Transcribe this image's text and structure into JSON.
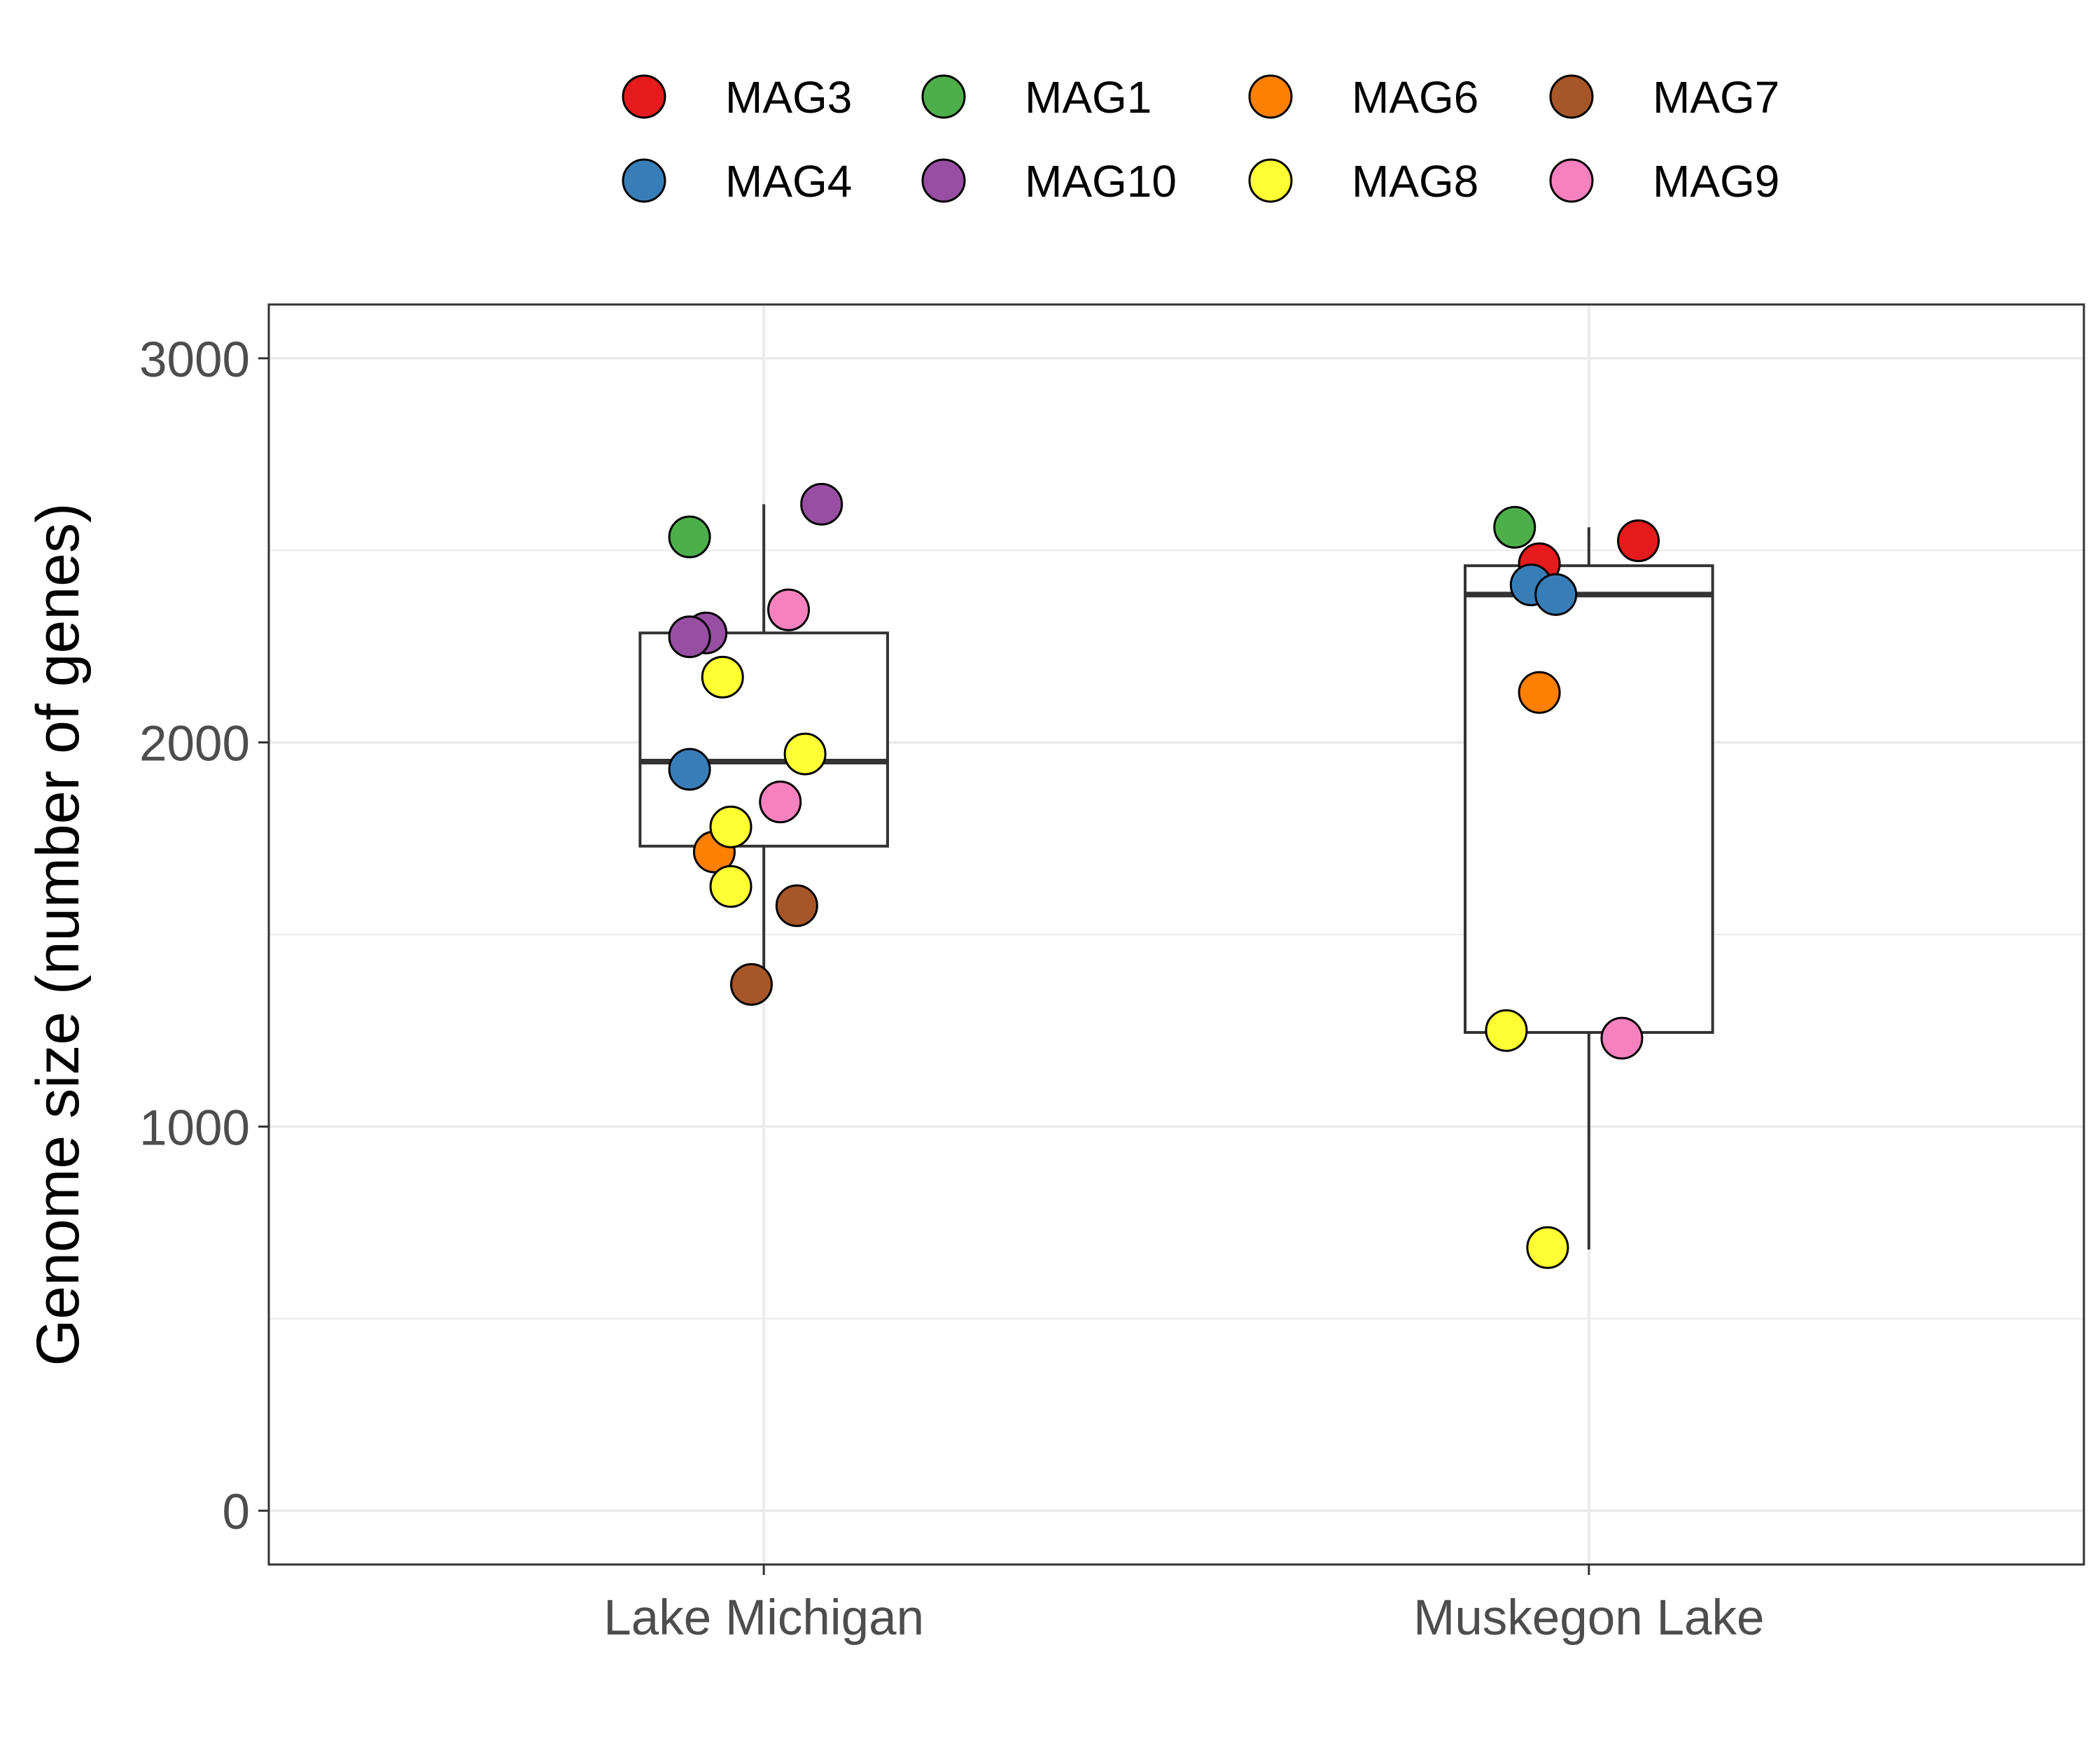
{
  "chart_data": {
    "type": "box",
    "title": "",
    "xlabel": "",
    "ylabel": "Genome size (number of genes)",
    "ylim": [
      -140,
      3140
    ],
    "y_ticks": [
      0,
      1000,
      2000,
      3000
    ],
    "grid": true,
    "legend_position": "top",
    "categories": [
      "Lake Michigan",
      "Muskegon Lake"
    ],
    "boxes": [
      {
        "category": "Lake Michigan",
        "whisker_low": 1370,
        "q1": 1730,
        "median": 1950,
        "q3": 2285,
        "whisker_high": 2620
      },
      {
        "category": "Muskegon Lake",
        "whisker_low": 680,
        "q1": 1245,
        "median": 2385,
        "q3": 2460,
        "whisker_high": 2560
      }
    ],
    "series": [
      {
        "name": "MAG3",
        "color": "#e41a1c",
        "points": [
          {
            "category": "Muskegon Lake",
            "y": 2465,
            "jitter": -0.06
          },
          {
            "category": "Muskegon Lake",
            "y": 2525,
            "jitter": 0.06
          }
        ]
      },
      {
        "name": "MAG4",
        "color": "#377eb8",
        "points": [
          {
            "category": "Lake Michigan",
            "y": 1930,
            "jitter": -0.09
          },
          {
            "category": "Muskegon Lake",
            "y": 2410,
            "jitter": -0.07
          },
          {
            "category": "Muskegon Lake",
            "y": 2385,
            "jitter": -0.04
          }
        ]
      },
      {
        "name": "MAG1",
        "color": "#4daf4a",
        "points": [
          {
            "category": "Lake Michigan",
            "y": 2535,
            "jitter": -0.09
          },
          {
            "category": "Muskegon Lake",
            "y": 2560,
            "jitter": -0.09
          }
        ]
      },
      {
        "name": "MAG10",
        "color": "#984ea3",
        "points": [
          {
            "category": "Lake Michigan",
            "y": 2620,
            "jitter": 0.07
          },
          {
            "category": "Lake Michigan",
            "y": 2285,
            "jitter": -0.07
          },
          {
            "category": "Lake Michigan",
            "y": 2275,
            "jitter": -0.09
          }
        ]
      },
      {
        "name": "MAG6",
        "color": "#ff7f00",
        "points": [
          {
            "category": "Lake Michigan",
            "y": 1715,
            "jitter": -0.06
          },
          {
            "category": "Muskegon Lake",
            "y": 2130,
            "jitter": -0.06
          }
        ]
      },
      {
        "name": "MAG8",
        "color": "#ffff33",
        "points": [
          {
            "category": "Lake Michigan",
            "y": 2170,
            "jitter": -0.05
          },
          {
            "category": "Lake Michigan",
            "y": 1970,
            "jitter": 0.05
          },
          {
            "category": "Lake Michigan",
            "y": 1780,
            "jitter": -0.04
          },
          {
            "category": "Lake Michigan",
            "y": 1625,
            "jitter": -0.04
          },
          {
            "category": "Muskegon Lake",
            "y": 1250,
            "jitter": -0.1
          },
          {
            "category": "Muskegon Lake",
            "y": 685,
            "jitter": -0.05
          }
        ]
      },
      {
        "name": "MAG7",
        "color": "#a65628",
        "points": [
          {
            "category": "Lake Michigan",
            "y": 1575,
            "jitter": 0.04
          },
          {
            "category": "Lake Michigan",
            "y": 1370,
            "jitter": -0.015
          }
        ]
      },
      {
        "name": "MAG9",
        "color": "#f781bf",
        "points": [
          {
            "category": "Lake Michigan",
            "y": 2345,
            "jitter": 0.03
          },
          {
            "category": "Lake Michigan",
            "y": 1845,
            "jitter": 0.02
          },
          {
            "category": "Muskegon Lake",
            "y": 1230,
            "jitter": 0.04
          }
        ]
      }
    ]
  }
}
